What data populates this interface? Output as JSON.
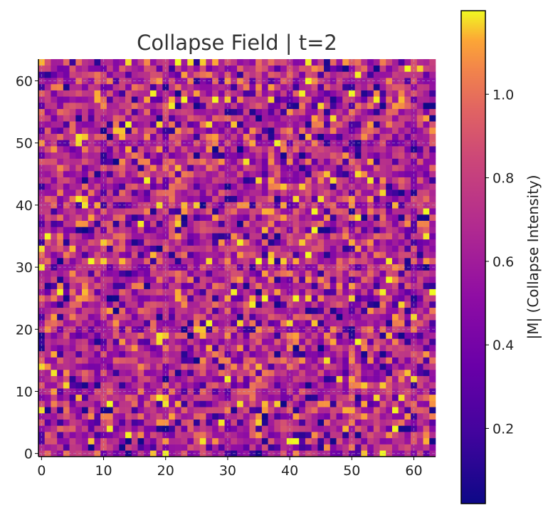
{
  "chart_data": {
    "type": "heatmap",
    "title": "Collapse Field | t=2",
    "xlabel": "",
    "ylabel": "",
    "grid_size": [
      64,
      64
    ],
    "xlim": [
      -0.5,
      63.5
    ],
    "ylim": [
      -0.5,
      63.5
    ],
    "x_ticks": [
      0,
      10,
      20,
      30,
      40,
      50,
      60
    ],
    "y_ticks": [
      0,
      10,
      20,
      30,
      40,
      50,
      60
    ],
    "x_tick_labels": [
      "0",
      "10",
      "20",
      "30",
      "40",
      "50",
      "60"
    ],
    "y_tick_labels": [
      "0",
      "10",
      "20",
      "30",
      "40",
      "50",
      "60"
    ],
    "grid": true,
    "grid_line_spacing": 10,
    "colormap": "plasma",
    "value_range": [
      0.02,
      1.2
    ],
    "mean_value": 0.72,
    "colorbar": {
      "label": "|M| (Collapse Intensity)",
      "ticks": [
        0.2,
        0.4,
        0.6,
        0.8,
        1.0
      ],
      "tick_labels": [
        "0.2",
        "0.4",
        "0.6",
        "0.8",
        "1.0"
      ]
    }
  }
}
